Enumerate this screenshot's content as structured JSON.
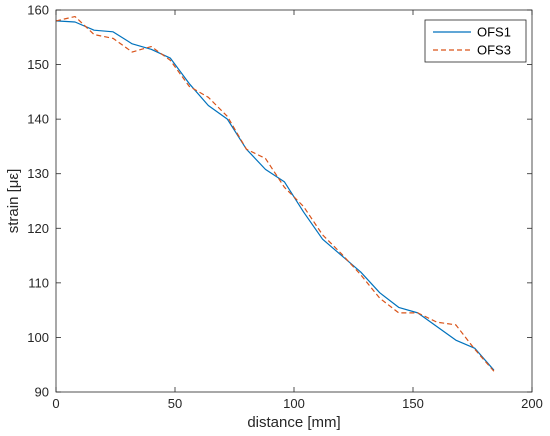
{
  "chart_data": {
    "type": "line",
    "xlabel": "distance  [mm]",
    "ylabel": "strain  [με]",
    "xlim": [
      0,
      200
    ],
    "ylim": [
      90,
      160
    ],
    "xticks": [
      0,
      50,
      100,
      150,
      200
    ],
    "yticks": [
      90,
      100,
      110,
      120,
      130,
      140,
      150,
      160
    ],
    "grid": false,
    "legend_position": "top-right",
    "series": [
      {
        "name": "OFS1",
        "color": "#0072BD",
        "dash": "solid",
        "x": [
          0,
          8,
          16,
          24,
          32,
          40,
          48,
          56,
          64,
          72,
          80,
          88,
          96,
          104,
          112,
          120,
          128,
          136,
          144,
          152,
          160,
          168,
          176,
          184
        ],
        "y": [
          158,
          157.8,
          156.3,
          156,
          153.8,
          152.8,
          151.2,
          146.5,
          142.5,
          140,
          134.5,
          130.8,
          128.5,
          123,
          118,
          115,
          112,
          108.2,
          105.5,
          104.5,
          102,
          99.5,
          98,
          94
        ]
      },
      {
        "name": "OFS3",
        "color": "#D95319",
        "dash": "dashed",
        "x": [
          0,
          8,
          16,
          24,
          32,
          40,
          48,
          56,
          64,
          72,
          80,
          88,
          96,
          104,
          112,
          120,
          128,
          136,
          144,
          152,
          160,
          168,
          176,
          184
        ],
        "y": [
          158,
          158.8,
          155.5,
          154.8,
          152.3,
          153.3,
          150.8,
          146,
          144,
          140.5,
          134.5,
          132.8,
          127.5,
          124,
          118.8,
          115.3,
          111.5,
          107.2,
          104.5,
          104.5,
          102.8,
          102.3,
          97.8,
          93.8
        ]
      }
    ]
  }
}
